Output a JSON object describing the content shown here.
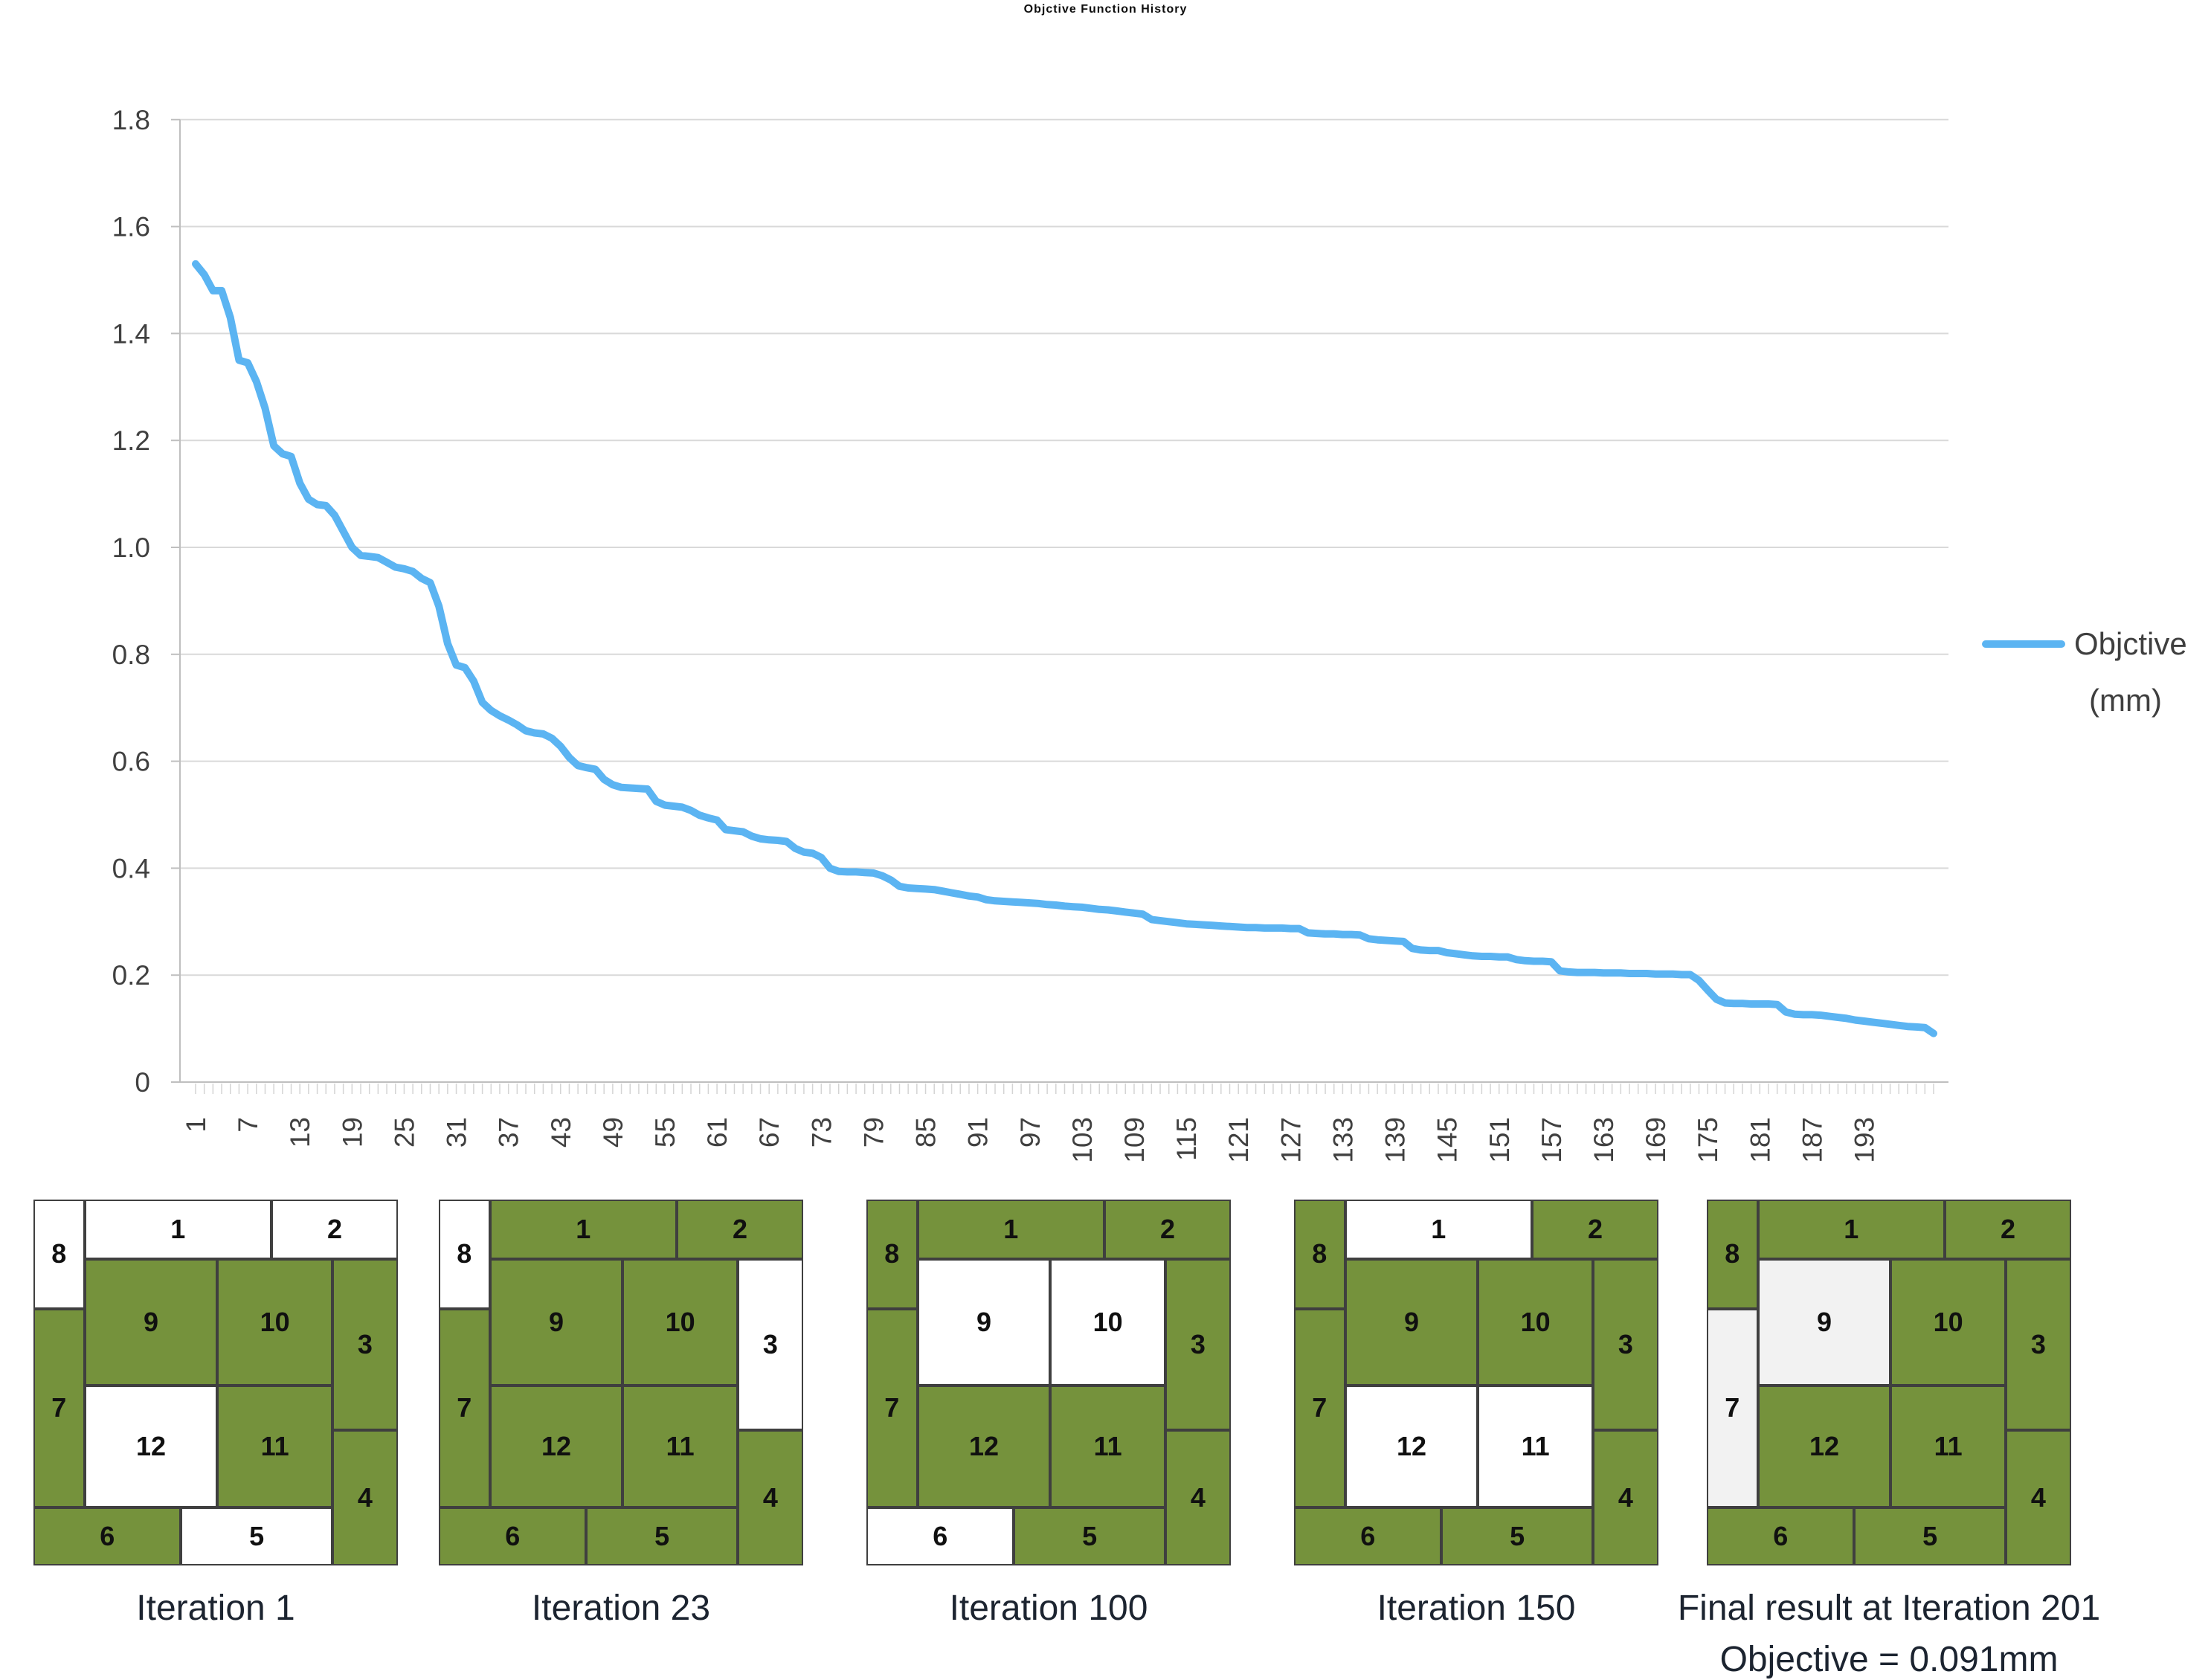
{
  "title": "Objctive Function History",
  "legend": {
    "label_line1": "Objctive",
    "label_line2": "(mm)"
  },
  "colors": {
    "line": "#5BB4F2",
    "green": "#75923C",
    "grid": "#D9D9D9",
    "axis": "#BFBFBF",
    "tick": "#D4D4D4",
    "axis_text": "#404040",
    "cell_border": "#3F3F3F"
  },
  "chart_data": {
    "type": "line",
    "title": "Objctive Function History",
    "xlabel": "",
    "ylabel": "",
    "ylim": [
      0,
      1.8
    ],
    "grid": true,
    "legend_position": "right",
    "x_start": 1,
    "x_tick_labels": [
      1,
      7,
      13,
      19,
      25,
      31,
      37,
      43,
      49,
      55,
      61,
      67,
      73,
      79,
      85,
      91,
      97,
      103,
      109,
      115,
      121,
      127,
      133,
      139,
      145,
      151,
      157,
      163,
      169,
      175,
      181,
      187,
      193
    ],
    "y_ticks": [
      0,
      0.2,
      0.4,
      0.6,
      0.8,
      1,
      1.2,
      1.4,
      1.6,
      1.8
    ],
    "y_tick_labels": [
      "0",
      "0.2",
      "0.4",
      "0.6",
      "0.8",
      "1.0",
      "1.2",
      "1.4",
      "1.6",
      "1.8"
    ],
    "series": [
      {
        "name": "Objctive (mm)",
        "values": [
          1.53,
          1.51,
          1.48,
          1.48,
          1.43,
          1.35,
          1.345,
          1.31,
          1.26,
          1.19,
          1.175,
          1.17,
          1.12,
          1.09,
          1.08,
          1.078,
          1.06,
          1.03,
          1.0,
          0.985,
          0.983,
          0.981,
          0.972,
          0.963,
          0.96,
          0.955,
          0.942,
          0.934,
          0.89,
          0.82,
          0.78,
          0.775,
          0.75,
          0.71,
          0.695,
          0.685,
          0.677,
          0.668,
          0.657,
          0.653,
          0.651,
          0.643,
          0.628,
          0.607,
          0.592,
          0.588,
          0.585,
          0.566,
          0.556,
          0.551,
          0.55,
          0.549,
          0.548,
          0.525,
          0.518,
          0.516,
          0.514,
          0.508,
          0.499,
          0.494,
          0.49,
          0.472,
          0.47,
          0.468,
          0.46,
          0.455,
          0.453,
          0.452,
          0.45,
          0.437,
          0.43,
          0.428,
          0.42,
          0.4,
          0.394,
          0.393,
          0.393,
          0.392,
          0.391,
          0.386,
          0.378,
          0.366,
          0.363,
          0.362,
          0.361,
          0.36,
          0.357,
          0.354,
          0.351,
          0.348,
          0.346,
          0.341,
          0.339,
          0.338,
          0.337,
          0.336,
          0.335,
          0.334,
          0.332,
          0.331,
          0.329,
          0.328,
          0.327,
          0.325,
          0.323,
          0.322,
          0.32,
          0.318,
          0.316,
          0.314,
          0.304,
          0.302,
          0.3,
          0.298,
          0.296,
          0.295,
          0.294,
          0.293,
          0.292,
          0.291,
          0.29,
          0.289,
          0.289,
          0.288,
          0.288,
          0.288,
          0.287,
          0.287,
          0.279,
          0.278,
          0.277,
          0.277,
          0.276,
          0.276,
          0.275,
          0.268,
          0.266,
          0.265,
          0.264,
          0.263,
          0.25,
          0.247,
          0.246,
          0.246,
          0.242,
          0.24,
          0.238,
          0.236,
          0.235,
          0.235,
          0.234,
          0.234,
          0.229,
          0.227,
          0.226,
          0.226,
          0.225,
          0.208,
          0.206,
          0.205,
          0.205,
          0.205,
          0.204,
          0.204,
          0.204,
          0.203,
          0.203,
          0.203,
          0.202,
          0.202,
          0.202,
          0.201,
          0.201,
          0.19,
          0.172,
          0.155,
          0.148,
          0.147,
          0.147,
          0.146,
          0.146,
          0.146,
          0.145,
          0.131,
          0.127,
          0.126,
          0.126,
          0.125,
          0.123,
          0.121,
          0.119,
          0.116,
          0.114,
          0.112,
          0.11,
          0.108,
          0.106,
          0.104,
          0.103,
          0.102,
          0.091
        ]
      }
    ]
  },
  "panel_cell_order": [
    8,
    1,
    2,
    9,
    10,
    3,
    7,
    12,
    11,
    4,
    6,
    5
  ],
  "panels": [
    {
      "caption": "Iteration 1",
      "white_cells": [
        1,
        2,
        8,
        12,
        5
      ],
      "white_fill": "#ffffff"
    },
    {
      "caption": "Iteration 23",
      "white_cells": [
        8,
        3
      ],
      "white_fill": "#ffffff"
    },
    {
      "caption": "Iteration 100",
      "white_cells": [
        9,
        10,
        6
      ],
      "white_fill": "#ffffff"
    },
    {
      "caption": "Iteration 150",
      "white_cells": [
        1,
        12,
        11
      ],
      "white_fill": "#ffffff"
    },
    {
      "caption": "Final result at Iteration 201",
      "white_cells": [
        9,
        7
      ],
      "white_fill": "#f2f2f2",
      "subcaption": "Objective = 0.091mm"
    }
  ]
}
